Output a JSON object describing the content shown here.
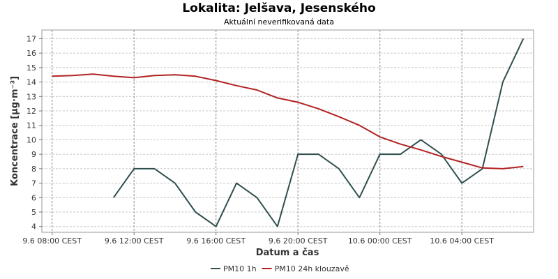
{
  "chart_data": {
    "type": "line",
    "title": "Lokalita: Jelšava, Jesenského",
    "subtitle": "Aktuální neverifikovaná data",
    "xlabel": "Datum a čas",
    "ylabel": "Koncentrace [µg·m⁻³]",
    "x_ticks": [
      "9.6 08:00 CEST",
      "9.6 12:00 CEST",
      "9.6 16:00 CEST",
      "9.6 20:00 CEST",
      "10.6 00:00 CEST",
      "10.6 04:00 CEST"
    ],
    "x_tick_hours": [
      8,
      12,
      16,
      20,
      24,
      28
    ],
    "xlim_hours": [
      7.5,
      31.5
    ],
    "ylim": [
      3.6,
      17.6
    ],
    "y_ticks": [
      4,
      5,
      6,
      7,
      8,
      9,
      10,
      11,
      12,
      13,
      14,
      15,
      16,
      17
    ],
    "grid": true,
    "legend_position": "bottom",
    "series": [
      {
        "name": "PM10 1h",
        "color": "#2f4f4f",
        "x_hours": [
          11,
          12,
          13,
          14,
          15,
          16,
          17,
          18,
          19,
          20,
          21,
          22,
          23,
          24,
          25,
          26,
          27,
          28,
          29,
          30,
          31
        ],
        "values": [
          6,
          8,
          8,
          7,
          5,
          4,
          7,
          6,
          4,
          9,
          9,
          8,
          6,
          9,
          9,
          10,
          9,
          7,
          8,
          14,
          17
        ]
      },
      {
        "name": "PM10 24h klouzavě",
        "color": "#b22222",
        "x_hours": [
          8,
          9,
          10,
          11,
          12,
          13,
          14,
          15,
          16,
          17,
          18,
          19,
          20,
          21,
          22,
          23,
          24,
          25,
          26,
          27,
          28,
          29,
          30,
          31
        ],
        "values": [
          14.4,
          14.45,
          14.55,
          14.4,
          14.3,
          14.45,
          14.5,
          14.4,
          14.1,
          13.75,
          13.45,
          12.9,
          12.6,
          12.15,
          11.6,
          11.0,
          10.2,
          9.7,
          9.3,
          8.85,
          8.45,
          8.05,
          8.0,
          8.15
        ]
      }
    ]
  }
}
